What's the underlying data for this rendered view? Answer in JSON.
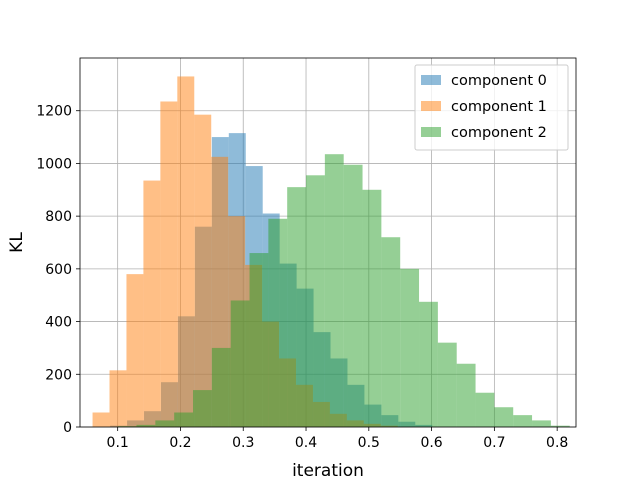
{
  "chart_data": {
    "type": "histogram",
    "xlabel": "iteration",
    "ylabel": "KL",
    "xlim": [
      0.04,
      0.83
    ],
    "ylim": [
      0,
      1400
    ],
    "grid": true,
    "legend_position": "top-right",
    "x_ticks": [
      "0.1",
      "0.2",
      "0.3",
      "0.4",
      "0.5",
      "0.6",
      "0.7",
      "0.8"
    ],
    "y_ticks": [
      "0",
      "200",
      "400",
      "600",
      "800",
      "1000",
      "1200"
    ],
    "series": [
      {
        "name": "component 0",
        "color": "#1f77b4",
        "opacity": 0.5,
        "bins": [
          {
            "x0": 0.088,
            "x1": 0.115,
            "count": 5
          },
          {
            "x0": 0.115,
            "x1": 0.142,
            "count": 25
          },
          {
            "x0": 0.142,
            "x1": 0.169,
            "count": 60
          },
          {
            "x0": 0.169,
            "x1": 0.196,
            "count": 170
          },
          {
            "x0": 0.196,
            "x1": 0.223,
            "count": 420
          },
          {
            "x0": 0.223,
            "x1": 0.25,
            "count": 760
          },
          {
            "x0": 0.25,
            "x1": 0.277,
            "count": 1100
          },
          {
            "x0": 0.277,
            "x1": 0.304,
            "count": 1115
          },
          {
            "x0": 0.304,
            "x1": 0.331,
            "count": 990
          },
          {
            "x0": 0.331,
            "x1": 0.358,
            "count": 810
          },
          {
            "x0": 0.358,
            "x1": 0.385,
            "count": 620
          },
          {
            "x0": 0.385,
            "x1": 0.412,
            "count": 525
          },
          {
            "x0": 0.412,
            "x1": 0.439,
            "count": 360
          },
          {
            "x0": 0.439,
            "x1": 0.466,
            "count": 260
          },
          {
            "x0": 0.466,
            "x1": 0.493,
            "count": 160
          },
          {
            "x0": 0.493,
            "x1": 0.52,
            "count": 85
          },
          {
            "x0": 0.52,
            "x1": 0.547,
            "count": 45
          },
          {
            "x0": 0.547,
            "x1": 0.574,
            "count": 20
          },
          {
            "x0": 0.574,
            "x1": 0.601,
            "count": 8
          }
        ]
      },
      {
        "name": "component 1",
        "color": "#ff7f0e",
        "opacity": 0.5,
        "bins": [
          {
            "x0": 0.06,
            "x1": 0.087,
            "count": 55
          },
          {
            "x0": 0.087,
            "x1": 0.114,
            "count": 215
          },
          {
            "x0": 0.114,
            "x1": 0.141,
            "count": 580
          },
          {
            "x0": 0.141,
            "x1": 0.168,
            "count": 935
          },
          {
            "x0": 0.168,
            "x1": 0.195,
            "count": 1235
          },
          {
            "x0": 0.195,
            "x1": 0.222,
            "count": 1330
          },
          {
            "x0": 0.222,
            "x1": 0.249,
            "count": 1185
          },
          {
            "x0": 0.249,
            "x1": 0.276,
            "count": 1025
          },
          {
            "x0": 0.276,
            "x1": 0.303,
            "count": 800
          },
          {
            "x0": 0.303,
            "x1": 0.33,
            "count": 615
          },
          {
            "x0": 0.33,
            "x1": 0.357,
            "count": 400
          },
          {
            "x0": 0.357,
            "x1": 0.384,
            "count": 260
          },
          {
            "x0": 0.384,
            "x1": 0.411,
            "count": 160
          },
          {
            "x0": 0.411,
            "x1": 0.438,
            "count": 95
          },
          {
            "x0": 0.438,
            "x1": 0.465,
            "count": 50
          },
          {
            "x0": 0.465,
            "x1": 0.492,
            "count": 25
          },
          {
            "x0": 0.492,
            "x1": 0.519,
            "count": 12
          },
          {
            "x0": 0.519,
            "x1": 0.546,
            "count": 5
          }
        ]
      },
      {
        "name": "component 2",
        "color": "#2ca02c",
        "opacity": 0.5,
        "bins": [
          {
            "x0": 0.1,
            "x1": 0.13,
            "count": 3
          },
          {
            "x0": 0.13,
            "x1": 0.16,
            "count": 8
          },
          {
            "x0": 0.16,
            "x1": 0.19,
            "count": 25
          },
          {
            "x0": 0.19,
            "x1": 0.22,
            "count": 55
          },
          {
            "x0": 0.22,
            "x1": 0.25,
            "count": 140
          },
          {
            "x0": 0.25,
            "x1": 0.28,
            "count": 300
          },
          {
            "x0": 0.28,
            "x1": 0.31,
            "count": 480
          },
          {
            "x0": 0.31,
            "x1": 0.34,
            "count": 660
          },
          {
            "x0": 0.34,
            "x1": 0.37,
            "count": 790
          },
          {
            "x0": 0.37,
            "x1": 0.4,
            "count": 910
          },
          {
            "x0": 0.4,
            "x1": 0.43,
            "count": 955
          },
          {
            "x0": 0.43,
            "x1": 0.46,
            "count": 1035
          },
          {
            "x0": 0.46,
            "x1": 0.49,
            "count": 995
          },
          {
            "x0": 0.49,
            "x1": 0.52,
            "count": 900
          },
          {
            "x0": 0.52,
            "x1": 0.55,
            "count": 720
          },
          {
            "x0": 0.55,
            "x1": 0.58,
            "count": 600
          },
          {
            "x0": 0.58,
            "x1": 0.61,
            "count": 475
          },
          {
            "x0": 0.61,
            "x1": 0.64,
            "count": 320
          },
          {
            "x0": 0.64,
            "x1": 0.67,
            "count": 240
          },
          {
            "x0": 0.67,
            "x1": 0.7,
            "count": 130
          },
          {
            "x0": 0.7,
            "x1": 0.73,
            "count": 75
          },
          {
            "x0": 0.73,
            "x1": 0.76,
            "count": 45
          },
          {
            "x0": 0.76,
            "x1": 0.79,
            "count": 25
          },
          {
            "x0": 0.79,
            "x1": 0.82,
            "count": 5
          }
        ]
      }
    ]
  }
}
